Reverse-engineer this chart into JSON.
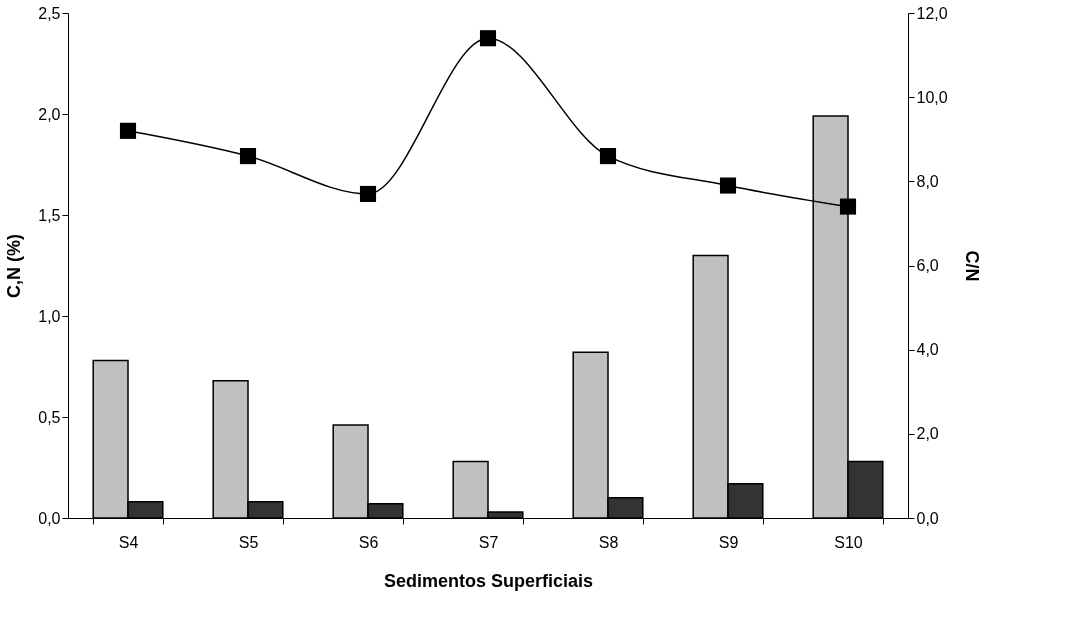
{
  "chart_data": {
    "type": "bar",
    "xlabel": "Sedimentos Superficiais",
    "ylabel": "C,N (%)",
    "y2label": "C/N",
    "categories": [
      "S4",
      "S5",
      "S6",
      "S7",
      "S8",
      "S9",
      "S10"
    ],
    "series": [
      {
        "color": "#c0c0c0",
        "values": [
          0.78,
          0.68,
          0.46,
          0.28,
          0.82,
          1.3,
          1.99
        ]
      },
      {
        "color": "#333333",
        "values": [
          0.08,
          0.08,
          0.07,
          0.03,
          0.1,
          0.17,
          0.28
        ]
      },
      {
        "type": "line",
        "axis": "y2",
        "color": "#000000",
        "values": [
          9.2,
          8.6,
          7.7,
          11.4,
          8.6,
          7.9,
          7.4
        ]
      }
    ],
    "ylim": [
      0,
      2.5
    ],
    "yticks": [
      {
        "value": 0,
        "label": "0,0"
      },
      {
        "value": 0.5,
        "label": "0,5"
      },
      {
        "value": 1,
        "label": "1,0"
      },
      {
        "value": 1.5,
        "label": "1,5"
      },
      {
        "value": 2,
        "label": "2,0"
      },
      {
        "value": 2.5,
        "label": "2,5"
      }
    ],
    "y2lim": [
      0,
      12
    ],
    "y2ticks": [
      {
        "value": 0,
        "label": "0,0"
      },
      {
        "value": 2,
        "label": "2,0"
      },
      {
        "value": 4,
        "label": "4,0"
      },
      {
        "value": 6,
        "label": "6,0"
      },
      {
        "value": 8,
        "label": "8,0"
      },
      {
        "value": 10,
        "label": "10,0"
      },
      {
        "value": 12,
        "label": "12,0"
      }
    ],
    "marker": "square",
    "line_style": "solid",
    "grid": false
  }
}
